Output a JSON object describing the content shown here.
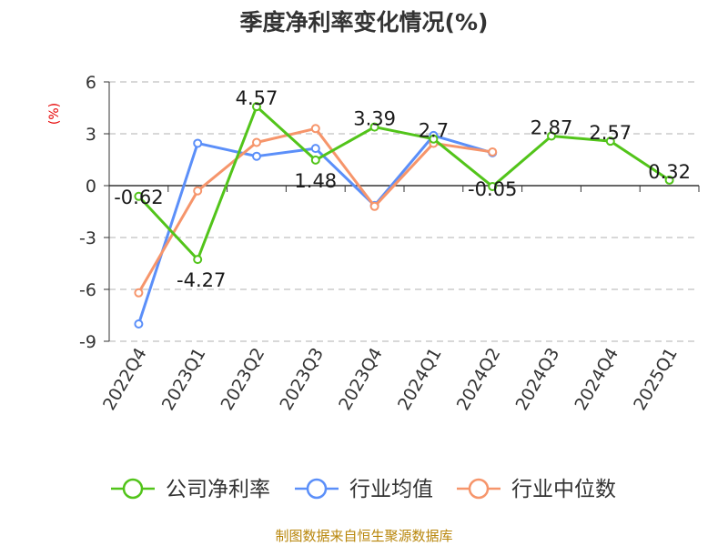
{
  "chart_data": {
    "type": "line",
    "title": "季度净利率变化情况(%)",
    "ylabel": "(%)",
    "ylim": [
      -9,
      6
    ],
    "yticks": [
      6,
      3,
      0,
      -3,
      -6,
      -9
    ],
    "grid": true,
    "legend_position": "bottom",
    "categories": [
      "2022Q4",
      "2023Q1",
      "2023Q2",
      "2023Q3",
      "2023Q4",
      "2024Q1",
      "2024Q2",
      "2024Q3",
      "2024Q4",
      "2025Q1"
    ],
    "series": [
      {
        "name": "公司净利率",
        "color": "#52c41a",
        "values": [
          -0.62,
          -4.27,
          4.57,
          1.48,
          3.39,
          2.7,
          -0.05,
          2.87,
          2.57,
          0.32
        ],
        "labels": [
          "-0.62",
          "-4.27",
          "4.57",
          "1.48",
          "3.39",
          "2.7",
          "-0.05",
          "2.87",
          "2.57",
          "0.32"
        ]
      },
      {
        "name": "行业均值",
        "color": "#5b8ff9",
        "values": [
          -8.0,
          2.45,
          1.7,
          2.15,
          -1.15,
          2.9,
          1.9,
          null,
          null,
          null
        ]
      },
      {
        "name": "行业中位数",
        "color": "#f6956b",
        "values": [
          -6.2,
          -0.3,
          2.5,
          3.3,
          -1.2,
          2.45,
          1.95,
          null,
          null,
          null
        ]
      }
    ],
    "source": "制图数据来自恒生聚源数据库"
  },
  "colors": {
    "title": "#333333",
    "ylabel": "#e60000",
    "axis_text": "#333333",
    "grid": "#cccccc",
    "source": "#b8860b"
  }
}
